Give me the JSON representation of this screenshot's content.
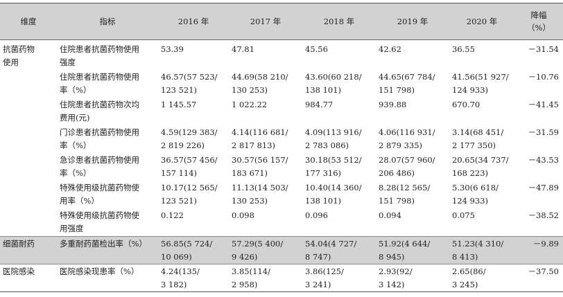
{
  "header": {
    "dimension": "维度",
    "indicator": "指标",
    "y2016": "2016 年",
    "y2017": "2017 年",
    "y2018": "2018 年",
    "y2019": "2019 年",
    "y2020": "2020 年",
    "decline": "降幅\n（%）"
  },
  "rows": [
    {
      "dimension": "抗菌药物\n使用",
      "indicator": "住院患者抗菌药物使用\n强度",
      "v2016": "53.39",
      "v2017": "47.81",
      "v2018": "45.56",
      "v2019": "42.62",
      "v2020": "36.55",
      "decline": "－31.54"
    },
    {
      "dimension": "",
      "indicator": "住院患者抗菌药物使用\n率（%）",
      "v2016": "46.57(57 523/\n123 521)",
      "v2017": "44.69(58 210/\n130 253)",
      "v2018": "43.60(60 218/\n138 101)",
      "v2019": "44.65(67 784/\n151 798)",
      "v2020": "41.56(51 927/\n124 933)",
      "decline": "－10.76"
    },
    {
      "dimension": "",
      "indicator": "住院患者抗菌药物次均\n费用(元)",
      "v2016": "1 145.57",
      "v2017": "1 022.22",
      "v2018": "984.77",
      "v2019": "939.88",
      "v2020": "670.70",
      "decline": "－41.45"
    },
    {
      "dimension": "",
      "indicator": "门诊患者抗菌药物使用\n率（%）",
      "v2016": "4.59(129 383/\n2 819 226)",
      "v2017": "4.14(116 681/\n2 817 813)",
      "v2018": "4.09(113 916/\n2 783 086)",
      "v2019": "4.06(116 931/\n2 879 335)",
      "v2020": "3.14(68 451/\n2 177 350)",
      "decline": "－31.59"
    },
    {
      "dimension": "",
      "indicator": "急诊患者抗菌药物使用\n率（%）",
      "v2016": "36.57(57 456/\n157 114)",
      "v2017": "30.57(56 157/\n183 671)",
      "v2018": "30.18(53 512/\n177 316)",
      "v2019": "28.07(57 960/\n206 486)",
      "v2020": "20.65(34 737/\n168 223)",
      "decline": "－43.53"
    },
    {
      "dimension": "",
      "indicator": "特殊使用级抗菌药物使\n用率（%）",
      "v2016": "10.17(12 565/\n123 521)",
      "v2017": "11.13(14 503/\n130 253)",
      "v2018": "10.40(14 360/\n138 101)",
      "v2019": "8.28(12 565/\n151 798)",
      "v2020": "5.30(6 618/\n124 933)",
      "decline": "－47.89"
    },
    {
      "dimension": "",
      "indicator": "特殊使用级抗菌药物使\n用强度",
      "v2016": "0.122",
      "v2017": "0.098",
      "v2018": "0.096",
      "v2019": "0.094",
      "v2020": "0.075",
      "decline": "－38.52"
    },
    {
      "dimension": "细菌耐药",
      "indicator": "多重耐药菌检出率（%）",
      "v2016": "56.85(5 724/\n10 069)",
      "v2017": "57.29(5 400/\n9 426)",
      "v2018": "54.04(4 727/\n8 747)",
      "v2019": "51.92(4 644/\n8 945)",
      "v2020": "51.23(4 310/\n8 413)",
      "decline": "－9.89"
    },
    {
      "dimension": "医院感染",
      "indicator": "医院感染现患率（%）",
      "v2016": "4.24(135/\n3 182)",
      "v2017": "3.85(114/\n2 958)",
      "v2018": "3.86(125/\n3 241)",
      "v2019": "2.93(92/\n3 142)",
      "v2020": "2.65(86/\n3 245)",
      "decline": "－37.50"
    }
  ]
}
